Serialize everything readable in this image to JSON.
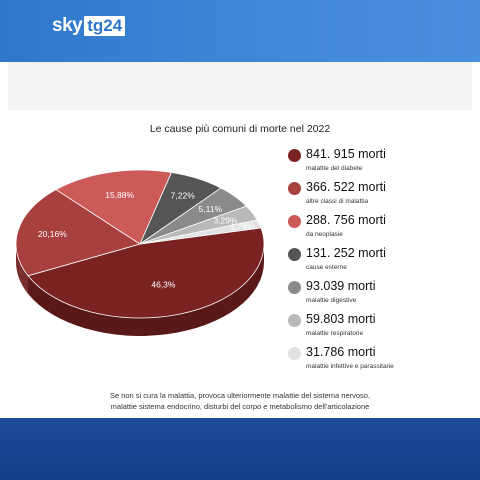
{
  "brand": {
    "sky": "sky",
    "tg": "tg24"
  },
  "title": "Le cause più comuni di morte nel 2022",
  "footnote": [
    "Se non si cura la malattia, provoca ulteriormente malattie del sistema nervoso,",
    "malattie sistema endocrino, disturbi del corpo e metabolismo dell'articolazione"
  ],
  "legend": [
    {
      "value": "841. 915 morti",
      "desc": "malattie del diabete",
      "color": "#7b2322"
    },
    {
      "value": "366. 522 morti",
      "desc": "altre classi di malattia",
      "color": "#a8403f"
    },
    {
      "value": "288. 756 morti",
      "desc": "da neoplasie",
      "color": "#cc5a58"
    },
    {
      "value": "131. 252 morti",
      "desc": "cause esterne",
      "color": "#555555"
    },
    {
      "value": "93.039 morti",
      "desc": "malattie digestive",
      "color": "#8a8a8a"
    },
    {
      "value": "59.803 morti",
      "desc": "malattie respiratorie",
      "color": "#b9b9b9"
    },
    {
      "value": "31.786 morti",
      "desc": "malattie infettive e parassitarie",
      "color": "#e2e2e2"
    }
  ],
  "chart_data": {
    "type": "pie",
    "title": "Le cause più comuni di morte nel 2022",
    "slices": [
      {
        "label": "46,3%",
        "value": 46.3,
        "color": "#7b2322"
      },
      {
        "label": "20,16%",
        "value": 20.16,
        "color": "#a8403f"
      },
      {
        "label": "15,88%",
        "value": 15.88,
        "color": "#cc5a58"
      },
      {
        "label": "7,22%",
        "value": 7.22,
        "color": "#555555"
      },
      {
        "label": "5,11%",
        "value": 5.11,
        "color": "#8a8a8a"
      },
      {
        "label": "3,29%",
        "value": 3.29,
        "color": "#b9b9b9"
      },
      {
        "label": "1,74%",
        "value": 1.74,
        "color": "#e2e2e2"
      }
    ]
  }
}
